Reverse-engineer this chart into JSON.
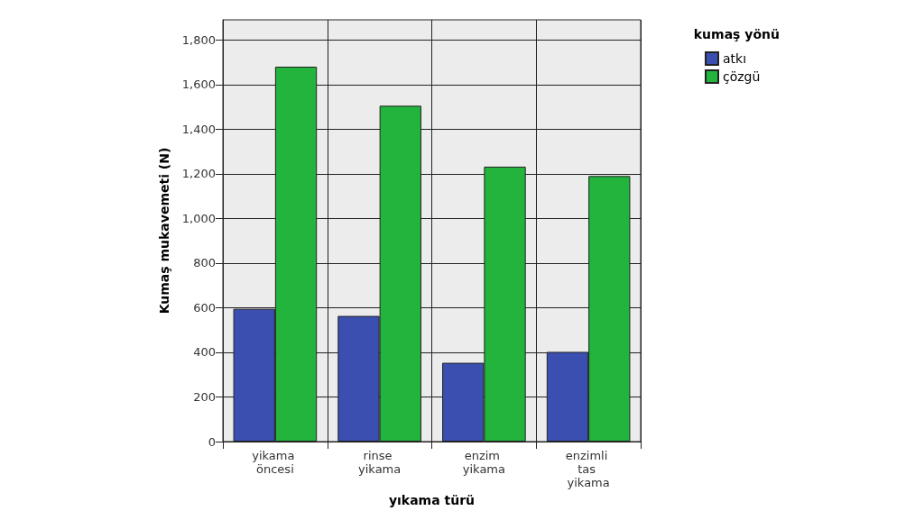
{
  "chart_data": {
    "type": "bar",
    "xlabel": "yıkama türü",
    "ylabel": "Kumaş mukavemeti (N)",
    "legend_title": "kumaş yönü",
    "categories": [
      "yikama öncesi",
      "rinse yikama",
      "enzim yikama",
      "enzimli tas yikama"
    ],
    "series": [
      {
        "name": "atkı",
        "color": "#3a4fb0",
        "values": [
          595,
          563,
          353,
          402
        ]
      },
      {
        "name": "çözgü",
        "color": "#22b43c",
        "values": [
          1680,
          1505,
          1232,
          1190
        ]
      }
    ],
    "ylim": [
      0,
      1890
    ],
    "yticks": [
      0,
      200,
      400,
      600,
      800,
      {
        "value": 1000,
        "label": "1,000"
      },
      {
        "value": 1200,
        "label": "1,200"
      },
      {
        "value": 1400,
        "label": "1,400"
      },
      {
        "value": 1600,
        "label": "1,600"
      },
      {
        "value": 1800,
        "label": "1,800"
      }
    ],
    "grid": true,
    "legend": "top right"
  }
}
